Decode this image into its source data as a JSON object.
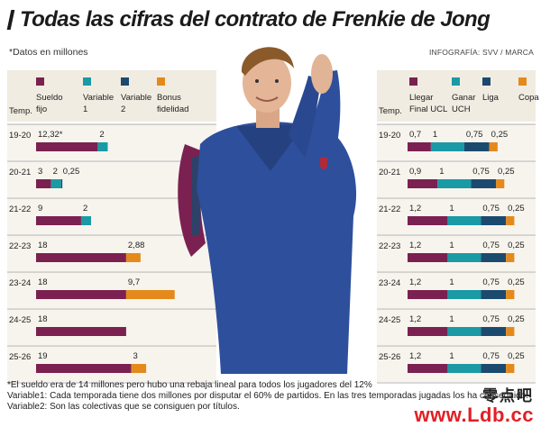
{
  "header": {
    "title": "Todas las cifras del contrato de Frenkie de Jong",
    "note": "*Datos en millones",
    "credit": "INFOGRAFÍA: SVV / MARCA"
  },
  "colors": {
    "sueldo": "#7b2151",
    "variable1": "#1a9aa5",
    "variable2": "#1c4a6e",
    "bonus": "#e48a1c",
    "header_bg": "#f1ece1",
    "row_bg": "#f7f4ed",
    "grid": "#9a9a9a"
  },
  "chart_data": [
    {
      "type": "bar",
      "stacked": true,
      "orientation": "horizontal",
      "temp_header": "Temp.",
      "categories": [
        "19-20",
        "20-21",
        "21-22",
        "22-23",
        "23-24",
        "24-25",
        "25-26"
      ],
      "series": [
        {
          "name": "Sueldo fijo",
          "color_key": "sueldo",
          "values": [
            12.32,
            3,
            9,
            18,
            18,
            18,
            19
          ],
          "labels": [
            "12,32*",
            "3",
            "9",
            "18",
            "18",
            "18",
            "19"
          ]
        },
        {
          "name": "Variable 1",
          "color_key": "variable1",
          "values": [
            2,
            2,
            2,
            0,
            0,
            0,
            0
          ],
          "labels": [
            "2",
            "2",
            "2",
            "",
            "",
            "",
            ""
          ]
        },
        {
          "name": "Variable 2",
          "color_key": "variable2",
          "values": [
            0,
            0.25,
            0,
            0,
            0,
            0,
            0
          ],
          "labels": [
            "",
            "0,25",
            "",
            "",
            "",
            "",
            ""
          ]
        },
        {
          "name": "Bonus fidelidad",
          "color_key": "bonus",
          "values": [
            0,
            0,
            0,
            2.88,
            9.7,
            0,
            3
          ],
          "labels": [
            "",
            "",
            "",
            "2,88",
            "9,7",
            "",
            "3"
          ]
        }
      ]
    },
    {
      "type": "bar",
      "stacked": true,
      "orientation": "horizontal",
      "temp_header": "Temp.",
      "categories": [
        "19-20",
        "20-21",
        "21-22",
        "22-23",
        "23-24",
        "24-25",
        "25-26"
      ],
      "series": [
        {
          "name": "Llegar Final UCL",
          "color_key": "sueldo",
          "values": [
            0.7,
            0.9,
            1.2,
            1.2,
            1.2,
            1.2,
            1.2
          ],
          "labels": [
            "0,7",
            "0,9",
            "1,2",
            "1,2",
            "1,2",
            "1,2",
            "1,2"
          ]
        },
        {
          "name": "Ganar UCH",
          "color_key": "variable1",
          "values": [
            1,
            1,
            1,
            1,
            1,
            1,
            1
          ],
          "labels": [
            "1",
            "1",
            "1",
            "1",
            "1",
            "1",
            "1"
          ]
        },
        {
          "name": "Liga",
          "color_key": "variable2",
          "values": [
            0.75,
            0.75,
            0.75,
            0.75,
            0.75,
            0.75,
            0.75
          ],
          "labels": [
            "0,75",
            "0,75",
            "0,75",
            "0,75",
            "0,75",
            "0,75",
            "0,75"
          ]
        },
        {
          "name": "Copa",
          "color_key": "bonus",
          "values": [
            0.25,
            0.25,
            0.25,
            0.25,
            0.25,
            0.25,
            0.25
          ],
          "labels": [
            "0,25",
            "0,25",
            "0,25",
            "0,25",
            "0,25",
            "0,25",
            "0,25"
          ]
        }
      ]
    }
  ],
  "footnotes": [
    "*El sueldo era de 14 millones pero hubo una rebaja lineal para todos los jugadores del 12%",
    "Variable1: Cada temporada tiene dos millones por disputar el 60% de partidos. En las tres temporadas jugadas los ha conseguido.",
    "Variable2: Son las colectivas que se consiguen por títulos."
  ],
  "watermark": {
    "text": "零点吧",
    "url": "www.Ldb.cc"
  }
}
